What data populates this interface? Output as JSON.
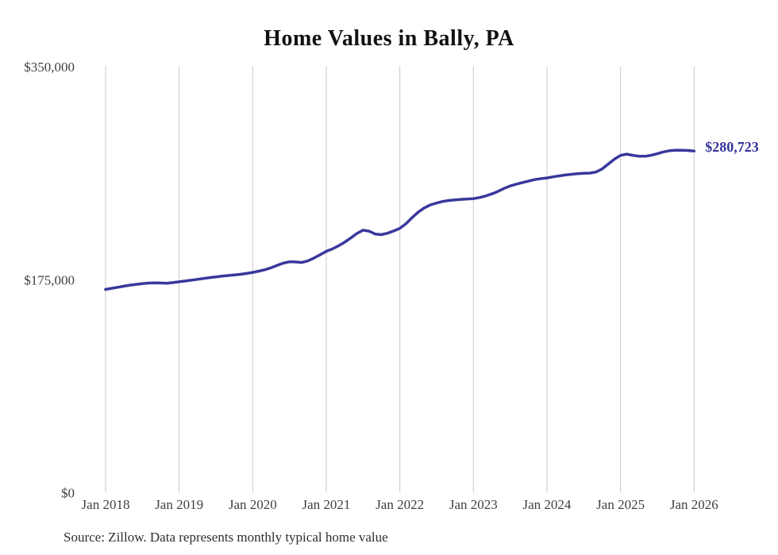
{
  "header": {
    "title": "Home Values in Bally, PA"
  },
  "footer": {
    "source_note": "Source: Zillow. Data represents monthly typical home value"
  },
  "chart_data": {
    "type": "line",
    "title": "Home Values in Bally, PA",
    "xlabel": "",
    "ylabel": "",
    "ylim": [
      0,
      350000
    ],
    "grid": "vertical-only",
    "legend": "none",
    "x_tick_labels": [
      "Jan 2018",
      "Jan 2019",
      "Jan 2020",
      "Jan 2021",
      "Jan 2022",
      "Jan 2023",
      "Jan 2024",
      "Jan 2025",
      "Jan 2026"
    ],
    "y_ticks": [
      {
        "value": 0,
        "label": "$0"
      },
      {
        "value": 175000,
        "label": "$175,000"
      },
      {
        "value": 350000,
        "label": "$350,000"
      }
    ],
    "start_month": "Jan 2018",
    "end_month": "Jan 2026",
    "interval": "monthly",
    "end_label": "$280,723",
    "latest_value": 280723,
    "series": [
      {
        "name": "Typical home value",
        "values": [
          167000,
          167900,
          168800,
          169700,
          170500,
          171200,
          171800,
          172200,
          172400,
          172300,
          172100,
          172600,
          173300,
          173900,
          174600,
          175300,
          176000,
          176700,
          177300,
          177900,
          178400,
          178900,
          179400,
          180100,
          181000,
          182000,
          183200,
          184800,
          186800,
          188600,
          189700,
          189600,
          189100,
          190400,
          192800,
          195500,
          198300,
          200300,
          202800,
          205800,
          209300,
          213000,
          215700,
          214800,
          212500,
          212000,
          213200,
          215000,
          217200,
          221000,
          226000,
          230500,
          234000,
          236500,
          238000,
          239300,
          240100,
          240600,
          241000,
          241300,
          241600,
          242500,
          243800,
          245500,
          247500,
          250000,
          252000,
          253500,
          254800,
          256000,
          257200,
          258000,
          258600,
          259500,
          260300,
          261000,
          261600,
          262100,
          262400,
          262600,
          263500,
          266000,
          270000,
          274000,
          277100,
          278200,
          277200,
          276500,
          276400,
          277200,
          278500,
          280000,
          281000,
          281400,
          281400,
          281200,
          280723
        ]
      }
    ],
    "colors": {
      "line": "#38389c",
      "end_label": "#33339b",
      "grid": "#c9c9c9",
      "tick_label": "#3f3f3f",
      "title": "#111111",
      "source": "#2e2e2e",
      "background": "#ffffff"
    }
  }
}
